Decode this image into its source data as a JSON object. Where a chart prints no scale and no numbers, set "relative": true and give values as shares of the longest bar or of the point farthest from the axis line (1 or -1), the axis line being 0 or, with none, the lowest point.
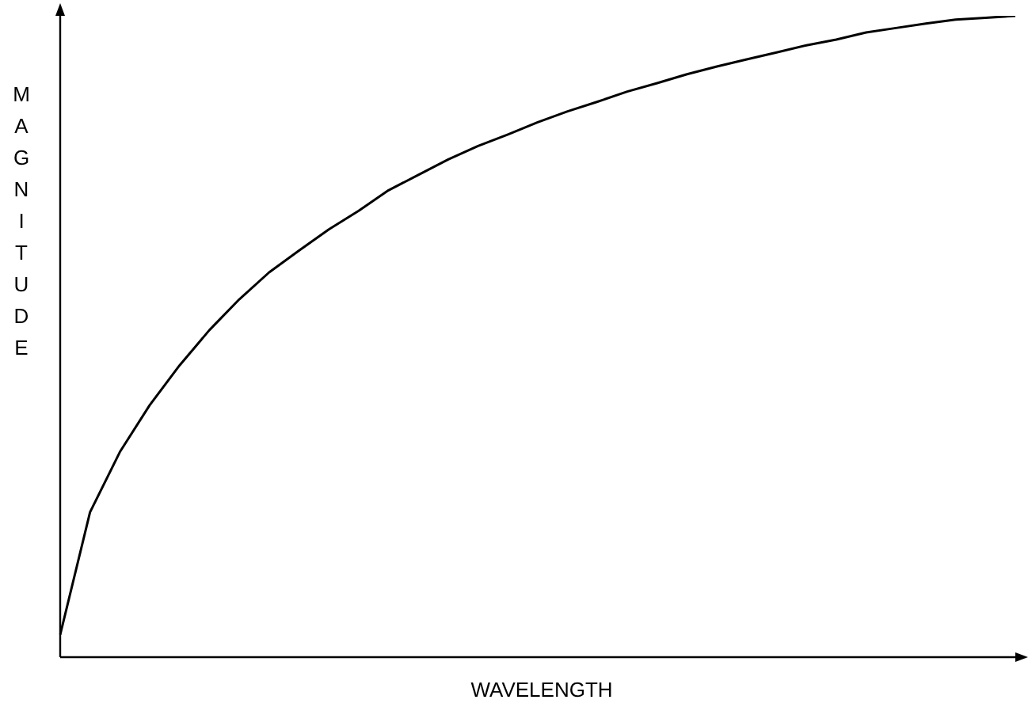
{
  "chart_data": {
    "type": "line",
    "relative": true,
    "xlabel": "WAVELENGTH",
    "ylabel": "MAGNITUDE",
    "color": "#000000",
    "legend": false,
    "marker": "none",
    "line_style": "solid",
    "categories": [
      null,
      null,
      null,
      null,
      null,
      null,
      null,
      null,
      null,
      null,
      null,
      null,
      null,
      null,
      null,
      null,
      null,
      null,
      null,
      null,
      null,
      null,
      null,
      null,
      null,
      null,
      null,
      null,
      null,
      null,
      null,
      null,
      null
    ],
    "values": [
      0.035,
      0.226,
      0.32,
      0.393,
      0.455,
      0.51,
      0.558,
      0.6,
      0.634,
      0.667,
      0.696,
      0.728,
      0.752,
      0.776,
      0.797,
      0.815,
      0.834,
      0.851,
      0.866,
      0.882,
      0.895,
      0.909,
      0.921,
      0.932,
      0.943,
      0.954,
      0.963,
      0.974,
      0.981,
      0.988,
      0.994,
      0.997,
      1.0
    ]
  }
}
